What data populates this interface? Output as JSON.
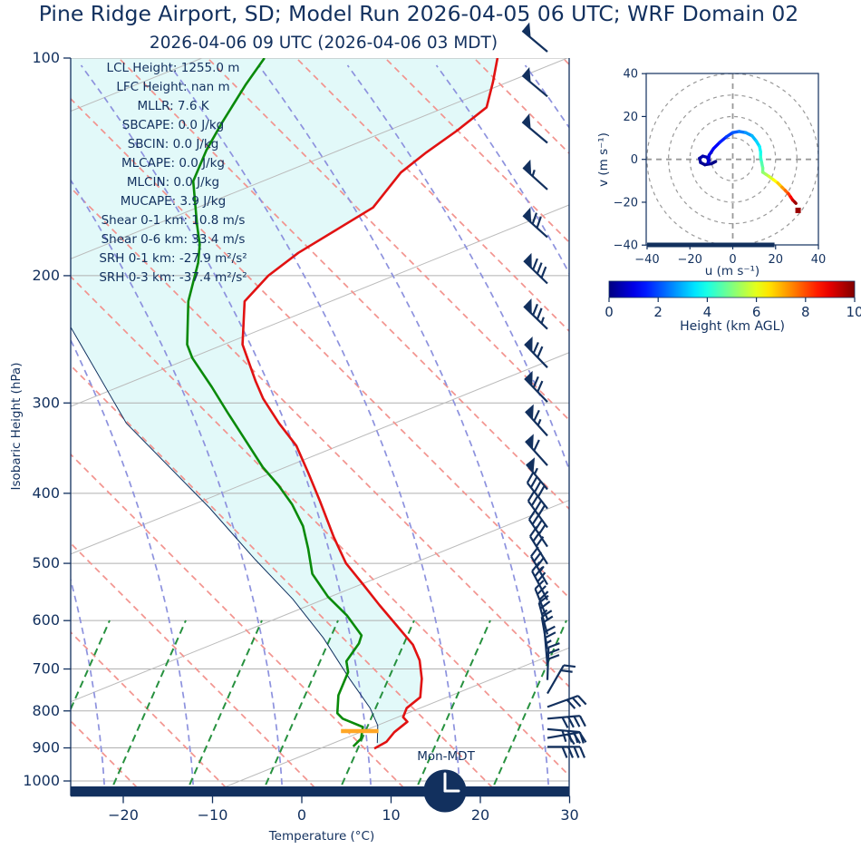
{
  "title": "Pine Ridge Airport, SD; Model Run 2026-04-05 06 UTC; WRF Domain 02",
  "subtitle": "2026-04-06 09 UTC  (2026-04-06 03 MDT)",
  "colors": {
    "navy": "#12305e",
    "temperature_line": "#e11212",
    "dewpoint_line": "#0a8a0a",
    "parcel_line": "#10305f",
    "dry_adiabat": "#f2938e",
    "moist_adiabat": "#8d92de",
    "mixing_line": "#27913f",
    "isotherm_gray": "#bbbbbb",
    "grid_gray": "#b0b0b0",
    "shade_cyan": "#e2f9f9",
    "lcl_bar": "#ffa726",
    "end_marker": "#990000",
    "clock_hands": "#ffffff"
  },
  "skewt": {
    "xlabel": "Temperature (°C)",
    "ylabel": "Isobaric Height (hPa)",
    "x_ticks": [
      -20,
      -10,
      0,
      10,
      20,
      30
    ],
    "p_ticks": [
      100,
      200,
      300,
      400,
      500,
      600,
      700,
      800,
      900,
      1000
    ],
    "surface_time_label": "Mon-MDT",
    "info_lines": [
      "LCL Height: 1255.0 m",
      "LFC Height: nan m",
      "MLLR: 7.6 K",
      "SBCAPE: 0.0 J/kg",
      "SBCIN: 0.0 J/kg",
      "MLCAPE: 0.0 J/kg",
      "MLCIN: 0.0 J/kg",
      "MUCAPE: 3.9 J/kg",
      "Shear 0-1 km: 10.8 m/s",
      "Shear 0-6 km: 33.4 m/s",
      "SRH 0-1 km: -27.9 m²/s²",
      "SRH 0-3 km: -37.4 m²/s²"
    ]
  },
  "hodograph": {
    "xlabel": "u (m s⁻¹)",
    "ylabel": "v (m s⁻¹)",
    "x_ticks": [
      -40,
      -20,
      0,
      20,
      40
    ],
    "y_ticks": [
      -40,
      -20,
      0,
      20,
      40
    ],
    "ring_radii": [
      10,
      20,
      30,
      40
    ]
  },
  "colorbar": {
    "label": "Height (km AGL)",
    "ticks": [
      0,
      2,
      4,
      6,
      8,
      10
    ],
    "colormap": "jet",
    "range_km": [
      0,
      10
    ]
  },
  "chart_data": {
    "type": "skewt-logp sounding with hodograph inset",
    "pressure_axis_hpa": [
      100,
      1050
    ],
    "temperature_axis_c": [
      -26,
      30
    ],
    "skew_isotherm_note": "temperature curves stored as [pressure_hPa, temp_C] using 1 px/px skew",
    "temperature_profile_pT": [
      [
        100,
        -59.0
      ],
      [
        108,
        -56.8
      ],
      [
        117,
        -54.7
      ],
      [
        126,
        -55.4
      ],
      [
        135,
        -56.4
      ],
      [
        144,
        -57.0
      ],
      [
        161,
        -56.2
      ],
      [
        172,
        -57.7
      ],
      [
        186,
        -59.5
      ],
      [
        200,
        -60.3
      ],
      [
        217,
        -60.1
      ],
      [
        249,
        -55.5
      ],
      [
        280,
        -49.9
      ],
      [
        296,
        -47.1
      ],
      [
        320,
        -42.6
      ],
      [
        344,
        -38.1
      ],
      [
        376,
        -33.6
      ],
      [
        410,
        -29.3
      ],
      [
        460,
        -23.7
      ],
      [
        500,
        -19.4
      ],
      [
        535,
        -15.1
      ],
      [
        571,
        -11.0
      ],
      [
        611,
        -6.6
      ],
      [
        648,
        -2.8
      ],
      [
        681,
        -0.3
      ],
      [
        722,
        2.0
      ],
      [
        766,
        3.9
      ],
      [
        793,
        3.6
      ],
      [
        816,
        4.2
      ],
      [
        828,
        5.2
      ],
      [
        856,
        4.9
      ],
      [
        883,
        5.1
      ],
      [
        902,
        4.5
      ]
    ],
    "dewpoint_profile_pT": [
      [
        100,
        -85.1
      ],
      [
        109,
        -84.2
      ],
      [
        123,
        -82.6
      ],
      [
        134,
        -81.3
      ],
      [
        148,
        -79.3
      ],
      [
        170,
        -74.0
      ],
      [
        181,
        -71.5
      ],
      [
        192,
        -69.6
      ],
      [
        217,
        -66.4
      ],
      [
        249,
        -61.7
      ],
      [
        260,
        -59.6
      ],
      [
        285,
        -54.2
      ],
      [
        309,
        -49.6
      ],
      [
        334,
        -45.1
      ],
      [
        368,
        -39.5
      ],
      [
        390,
        -35.7
      ],
      [
        414,
        -32.1
      ],
      [
        444,
        -28.4
      ],
      [
        477,
        -25.3
      ],
      [
        517,
        -22.0
      ],
      [
        556,
        -17.7
      ],
      [
        590,
        -13.5
      ],
      [
        629,
        -9.6
      ],
      [
        645,
        -9.0
      ],
      [
        683,
        -8.4
      ],
      [
        707,
        -7.0
      ],
      [
        761,
        -5.5
      ],
      [
        806,
        -3.6
      ],
      [
        820,
        -2.4
      ],
      [
        842,
        0.8
      ],
      [
        874,
        1.9
      ],
      [
        896,
        1.9
      ]
    ],
    "parcel_profile_pT": [
      [
        236,
        -76.6
      ],
      [
        320,
        -59.7
      ],
      [
        419,
        -40.9
      ],
      [
        494,
        -30.0
      ],
      [
        560,
        -21.4
      ],
      [
        634,
        -13.6
      ],
      [
        722,
        -6.1
      ],
      [
        793,
        -0.5
      ],
      [
        838,
        2.3
      ],
      [
        886,
        4.2
      ]
    ],
    "lcl_bar": {
      "p": 853,
      "t_from": -1.2,
      "t_to": 3.0
    },
    "indices": {
      "lcl_height_m": 1255.0,
      "lfc_height_m": "nan",
      "mllr_k": 7.6,
      "sbcape_jkg": 0.0,
      "sbcin_jkg": 0.0,
      "mlcape_jkg": 0.0,
      "mlcin_jkg": 0.0,
      "mucape_jkg": 3.9,
      "shear_0_1km_ms": 10.8,
      "shear_0_6km_ms": 33.4,
      "srh_0_1km_m2s2": -27.9,
      "srh_0_3km_m2s2": -37.4
    },
    "wind_barbs": [
      {
        "p": 98,
        "rot": -140,
        "f": 1,
        "b": 0,
        "h": 0
      },
      {
        "p": 113,
        "rot": -140,
        "f": 1,
        "b": 0,
        "h": 0
      },
      {
        "p": 131,
        "rot": -140,
        "f": 1,
        "b": 0,
        "h": 0
      },
      {
        "p": 152,
        "rot": -138,
        "f": 1,
        "b": 0,
        "h": 1
      },
      {
        "p": 177,
        "rot": -138,
        "f": 1,
        "b": 2,
        "h": 0
      },
      {
        "p": 205,
        "rot": -136,
        "f": 1,
        "b": 3,
        "h": 0
      },
      {
        "p": 237,
        "rot": -136,
        "f": 1,
        "b": 2,
        "h": 1
      },
      {
        "p": 268,
        "rot": -134,
        "f": 1,
        "b": 2,
        "h": 0
      },
      {
        "p": 299,
        "rot": -134,
        "f": 1,
        "b": 2,
        "h": 0
      },
      {
        "p": 333,
        "rot": -132,
        "f": 1,
        "b": 1,
        "h": 1
      },
      {
        "p": 366,
        "rot": -132,
        "f": 1,
        "b": 1,
        "h": 0
      },
      {
        "p": 395,
        "rot": -130,
        "f": 1,
        "b": 0,
        "h": 1
      },
      {
        "p": 420,
        "rot": -128,
        "f": 0,
        "b": 4,
        "h": 0
      },
      {
        "p": 446,
        "rot": -126,
        "f": 0,
        "b": 4,
        "h": 0
      },
      {
        "p": 474,
        "rot": -124,
        "f": 0,
        "b": 4,
        "h": 0
      },
      {
        "p": 501,
        "rot": -122,
        "f": 0,
        "b": 3,
        "h": 0
      },
      {
        "p": 535,
        "rot": -120,
        "f": 0,
        "b": 3,
        "h": 1
      },
      {
        "p": 562,
        "rot": -118,
        "f": 0,
        "b": 3,
        "h": 0
      },
      {
        "p": 597,
        "rot": -112,
        "f": 0,
        "b": 3,
        "h": 0
      },
      {
        "p": 627,
        "rot": -105,
        "f": 0,
        "b": 2,
        "h": 1
      },
      {
        "p": 657,
        "rot": -100,
        "f": 0,
        "b": 2,
        "h": 0
      },
      {
        "p": 690,
        "rot": -95,
        "f": 0,
        "b": 2,
        "h": 1
      },
      {
        "p": 725,
        "rot": -88,
        "f": 0,
        "b": 3,
        "h": 0
      },
      {
        "p": 757,
        "rot": -60,
        "f": 0,
        "b": 2,
        "h": 0
      },
      {
        "p": 790,
        "rot": -20,
        "f": 0,
        "b": 3,
        "h": 0
      },
      {
        "p": 820,
        "rot": -5,
        "f": 0,
        "b": 4,
        "h": 0
      },
      {
        "p": 848,
        "rot": 5,
        "f": 0,
        "b": 4,
        "h": 0
      },
      {
        "p": 872,
        "rot": -10,
        "f": 0,
        "b": 3,
        "h": 0
      },
      {
        "p": 897,
        "rot": 0,
        "f": 0,
        "b": 4,
        "h": 0
      }
    ],
    "hodograph_trace_uvh": [
      [
        -8,
        -1,
        0.0
      ],
      [
        -10,
        -2,
        0.1
      ],
      [
        -13,
        -2.5,
        0.15
      ],
      [
        -15,
        -1.5,
        0.2
      ],
      [
        -15.5,
        0.5,
        0.3
      ],
      [
        -14,
        1.5,
        0.4
      ],
      [
        -12,
        1,
        0.5
      ],
      [
        -11,
        -0.5,
        0.6
      ],
      [
        -11.5,
        -1.5,
        0.7
      ],
      [
        -11,
        2,
        0.9
      ],
      [
        -9,
        5,
        1.1
      ],
      [
        -6,
        8,
        1.4
      ],
      [
        -3,
        10.5,
        1.7
      ],
      [
        0,
        12.5,
        2.0
      ],
      [
        3,
        13,
        2.3
      ],
      [
        6,
        12.5,
        2.6
      ],
      [
        9,
        11,
        2.9
      ],
      [
        11,
        8.5,
        3.2
      ],
      [
        12.5,
        6,
        3.5
      ],
      [
        13,
        3.5,
        3.8
      ],
      [
        13,
        1,
        4.1
      ],
      [
        13.5,
        -1.5,
        4.4
      ],
      [
        14,
        -4,
        4.7
      ],
      [
        14,
        -6,
        5.0
      ],
      [
        15.5,
        -7,
        5.3
      ],
      [
        17,
        -8,
        5.6
      ],
      [
        19,
        -9.5,
        6.0
      ],
      [
        21,
        -11,
        6.5
      ],
      [
        23,
        -13,
        7.0
      ],
      [
        24.5,
        -14.5,
        7.5
      ],
      [
        26,
        -16,
        8.0
      ],
      [
        27,
        -17.5,
        8.5
      ],
      [
        28,
        -19,
        9.0
      ],
      [
        29,
        -20,
        9.5
      ],
      [
        29.5,
        -20.5,
        10.0
      ]
    ],
    "hodograph_end_marker_uv": [
      30.5,
      -23.8
    ],
    "hodograph_surface_bar_u": [
      -40,
      19.5
    ]
  }
}
